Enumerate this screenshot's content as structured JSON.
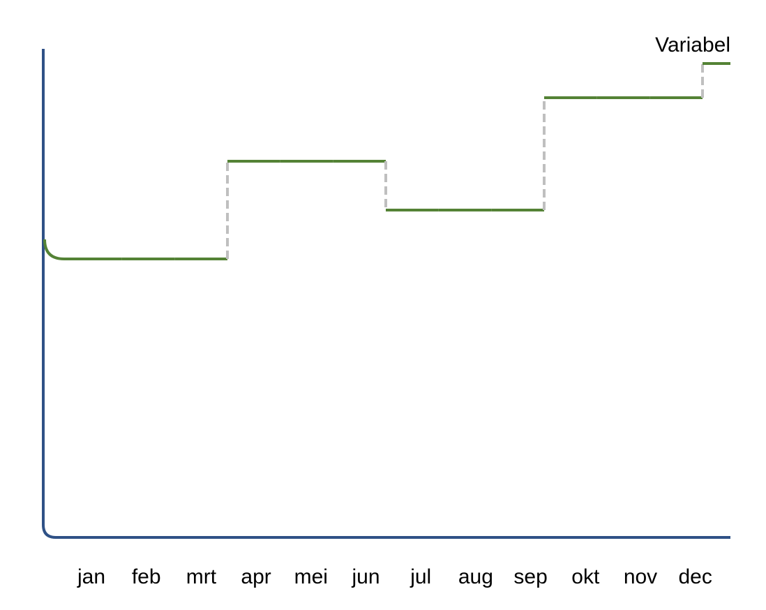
{
  "chart_data": {
    "type": "step",
    "categories": [
      "jan",
      "feb",
      "mrt",
      "apr",
      "mei",
      "jun",
      "jul",
      "aug",
      "sep",
      "okt",
      "nov",
      "dec",
      null
    ],
    "series": [
      {
        "name": "Variabel",
        "color": "#548235",
        "values": [
          57,
          57,
          57,
          77,
          77,
          77,
          67,
          67,
          67,
          90,
          90,
          90,
          97
        ]
      }
    ],
    "ylim": [
      0,
      100
    ]
  }
}
